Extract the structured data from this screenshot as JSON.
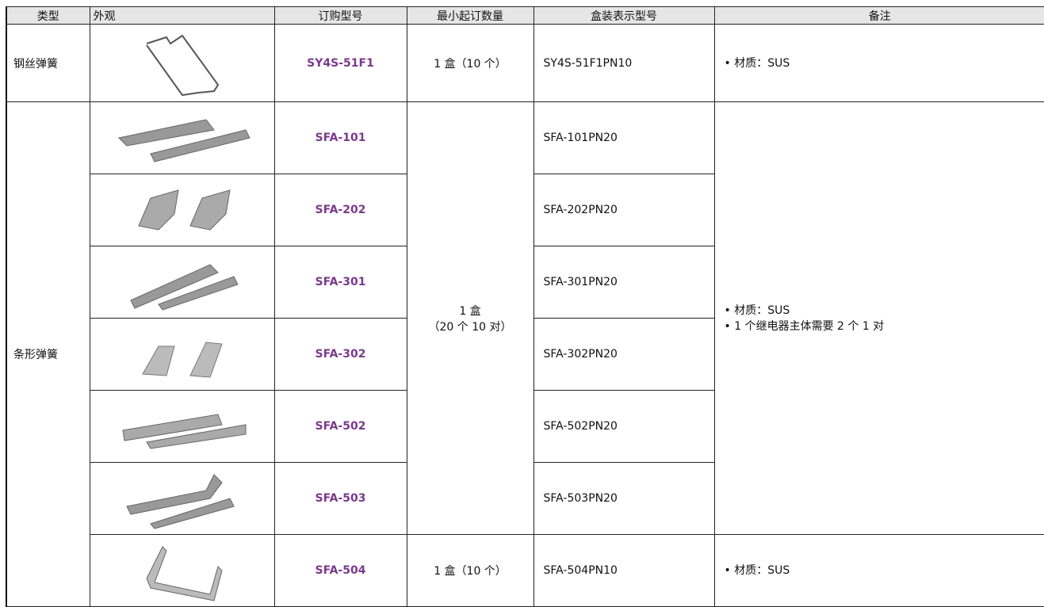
{
  "table": {
    "header": [
      "类型",
      "外观",
      "订购型号",
      "最小起订数量",
      "盒装表示型号",
      "备注"
    ],
    "rows": [
      {
        "type": "钢丝弹簧",
        "model": "SY4S-51F1",
        "min_order": "1 盒（10 个）",
        "box_model": "SY4S-51F1PN10",
        "notes": [
          "• 材质：SUS"
        ]
      },
      {
        "type": "条形弹簧",
        "model": "SFA-101",
        "min_order": [
          "1 盒",
          "（20 个 10 对）"
        ],
        "box_model": "SFA-101PN20",
        "notes": [
          "• 材质：SUS",
          "• 1 个继电器主体需要 2 个 1 对"
        ]
      },
      {
        "model": "SFA-202",
        "box_model": "SFA-202PN20"
      },
      {
        "model": "SFA-301",
        "box_model": "SFA-301PN20"
      },
      {
        "model": "SFA-302",
        "box_model": "SFA-302PN20"
      },
      {
        "model": "SFA-502",
        "box_model": "SFA-502PN20"
      },
      {
        "model": "SFA-503",
        "box_model": "SFA-503PN20"
      },
      {
        "model": "SFA-504",
        "min_order": "1 盒（10 个）",
        "box_model": "SFA-504PN10",
        "notes": [
          "• 材质：SUS"
        ]
      }
    ]
  }
}
